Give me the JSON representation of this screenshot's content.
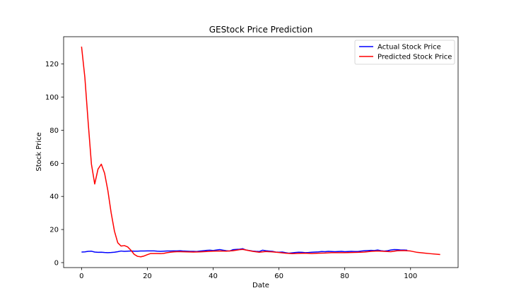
{
  "chart_data": {
    "type": "line",
    "title": "GEStock Price Prediction",
    "xlabel": "Date",
    "ylabel": "Stock Price",
    "xlim": [
      -5.45,
      114.45
    ],
    "ylim": [
      -3,
      136.5
    ],
    "xticks": [
      0,
      20,
      40,
      60,
      80,
      100
    ],
    "yticks": [
      0,
      20,
      40,
      60,
      80,
      100,
      120
    ],
    "grid": false,
    "legend_position": "top-right",
    "series": [
      {
        "name": "Actual Stock Price",
        "color": "#0000ff",
        "x": [
          0,
          1,
          2,
          3,
          4,
          5,
          6,
          7,
          8,
          9,
          10,
          11,
          12,
          13,
          14,
          15,
          16,
          17,
          18,
          19,
          20,
          21,
          22,
          23,
          24,
          25,
          26,
          27,
          28,
          29,
          30,
          31,
          32,
          33,
          34,
          35,
          36,
          37,
          38,
          39,
          40,
          41,
          42,
          43,
          44,
          45,
          46,
          47,
          48,
          49,
          50,
          51,
          52,
          53,
          54,
          55,
          56,
          57,
          58,
          59,
          60,
          61,
          62,
          63,
          64,
          65,
          66,
          67,
          68,
          69,
          70,
          71,
          72,
          73,
          74,
          75,
          76,
          77,
          78,
          79,
          80,
          81,
          82,
          83,
          84,
          85,
          86,
          87,
          88,
          89,
          90,
          91,
          92,
          93,
          94,
          95,
          96,
          97,
          98,
          99
        ],
        "y": [
          6.4,
          6.5,
          6.8,
          6.9,
          6.4,
          6.2,
          6.3,
          6.1,
          6.0,
          6.1,
          6.3,
          6.6,
          7.0,
          6.8,
          6.9,
          7.0,
          6.9,
          6.9,
          7.0,
          7.0,
          7.1,
          7.1,
          7.1,
          6.9,
          6.8,
          6.9,
          7.0,
          7.0,
          7.1,
          7.1,
          7.2,
          7.0,
          6.9,
          6.8,
          6.8,
          6.7,
          7.0,
          7.2,
          7.4,
          7.5,
          7.3,
          7.6,
          7.9,
          7.5,
          7.2,
          7.0,
          7.8,
          8.0,
          8.1,
          8.4,
          7.6,
          7.3,
          7.0,
          6.8,
          6.7,
          7.5,
          7.2,
          7.0,
          6.8,
          6.4,
          6.3,
          6.4,
          6.0,
          5.7,
          5.9,
          6.1,
          6.3,
          6.2,
          6.0,
          6.1,
          6.3,
          6.4,
          6.5,
          6.7,
          6.6,
          6.8,
          6.7,
          6.6,
          6.7,
          6.8,
          6.6,
          6.7,
          6.8,
          6.7,
          6.7,
          7.0,
          7.2,
          7.3,
          7.4,
          7.3,
          7.6,
          7.2,
          7.0,
          7.2,
          7.6,
          7.9,
          7.8,
          7.6,
          7.6,
          7.5
        ]
      },
      {
        "name": "Predicted Stock Price",
        "color": "#ff0000",
        "x": [
          0,
          1,
          2,
          3,
          4,
          5,
          6,
          7,
          8,
          9,
          10,
          11,
          12,
          13,
          14,
          15,
          16,
          17,
          18,
          19,
          20,
          21,
          22,
          23,
          24,
          25,
          26,
          27,
          28,
          29,
          30,
          32,
          34,
          36,
          38,
          40,
          42,
          44,
          46,
          48,
          49,
          50,
          52,
          54,
          56,
          58,
          60,
          62,
          64,
          66,
          68,
          70,
          72,
          74,
          76,
          78,
          80,
          82,
          84,
          86,
          88,
          90,
          92,
          94,
          96,
          98,
          100,
          102,
          104,
          106,
          109
        ],
        "y": [
          130.5,
          112.0,
          85.0,
          59.5,
          47.5,
          56.5,
          59.5,
          54.0,
          43.5,
          30.0,
          19.0,
          12.0,
          10.0,
          10.3,
          9.5,
          7.5,
          5.0,
          3.8,
          3.5,
          4.0,
          4.8,
          5.5,
          5.5,
          5.5,
          5.4,
          5.6,
          6.0,
          6.3,
          6.5,
          6.6,
          6.6,
          6.5,
          6.4,
          6.5,
          6.7,
          6.9,
          7.0,
          6.9,
          7.2,
          7.8,
          8.0,
          7.6,
          6.8,
          6.3,
          6.7,
          6.5,
          6.1,
          5.7,
          5.4,
          5.6,
          5.7,
          5.5,
          5.7,
          5.8,
          6.0,
          6.0,
          6.0,
          6.1,
          6.2,
          6.4,
          6.8,
          7.0,
          6.8,
          6.6,
          7.2,
          7.3,
          7.0,
          6.2,
          5.8,
          5.4,
          4.9
        ]
      }
    ]
  }
}
